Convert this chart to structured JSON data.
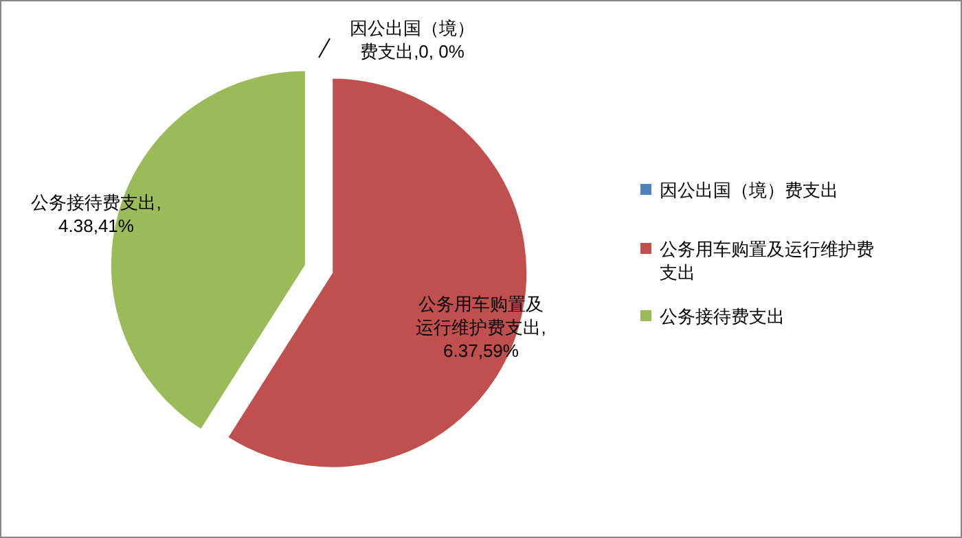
{
  "chart_data": {
    "type": "pie",
    "categories": [
      "因公出国（境）费支出",
      "公务用车购置及运行维护费支出",
      "公务接待费支出"
    ],
    "values": [
      0,
      59,
      41
    ],
    "value_labels": [
      "因公出国（境）费支出,0, 0%",
      "公务用车购置及运行维护费支出,6.37,59%",
      "公务接待费支出,4.38,41%"
    ],
    "colors": [
      "#4f81bd",
      "#c0504d",
      "#9bbb59"
    ],
    "legend": "right"
  }
}
